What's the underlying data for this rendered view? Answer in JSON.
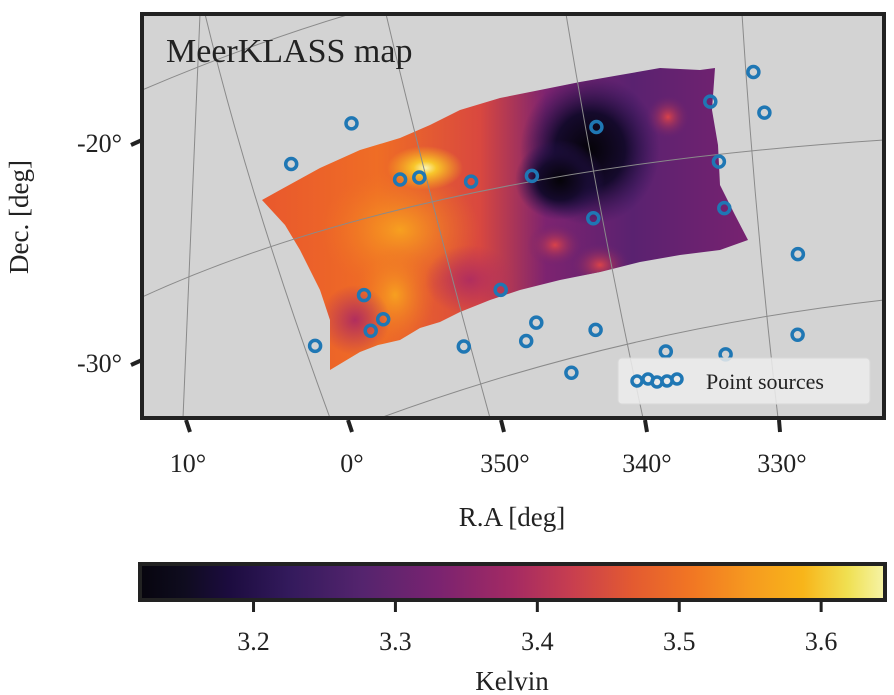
{
  "chart_data": {
    "type": "heatmap",
    "title": "MeerKLASS map",
    "xlabel": "R.A [deg]",
    "ylabel": "Dec. [deg]",
    "x_ticks": [
      {
        "value": 10,
        "label": "10°"
      },
      {
        "value": 0,
        "label": "0°"
      },
      {
        "value": 350,
        "label": "350°"
      },
      {
        "value": 340,
        "label": "340°"
      },
      {
        "value": 330,
        "label": "330°"
      }
    ],
    "y_ticks": [
      {
        "value": -20,
        "label": "-20°"
      },
      {
        "value": -30,
        "label": "-30°"
      }
    ],
    "grid": true,
    "colormap": "inferno",
    "colorbar": {
      "label": "Kelvin",
      "range": [
        3.12,
        3.645
      ],
      "ticks": [
        {
          "value": 3.2,
          "label": "3.2"
        },
        {
          "value": 3.3,
          "label": "3.3"
        },
        {
          "value": 3.4,
          "label": "3.4"
        },
        {
          "value": 3.5,
          "label": "3.5"
        },
        {
          "value": 3.6,
          "label": "3.6"
        }
      ],
      "orientation": "horizontal",
      "placement": "bottom"
    },
    "legend": {
      "placement": "lower-right",
      "entries": [
        {
          "label": "Point sources",
          "marker": "open-circle",
          "color": "#1f77b4"
        }
      ]
    },
    "map_features": [
      {
        "description": "hot spot",
        "ra": 356.5,
        "dec": -21.3,
        "value": 3.64
      },
      {
        "description": "cold spot",
        "ra": 343.5,
        "dec": -20.0,
        "value": 3.12
      },
      {
        "description": "warm compact source",
        "ra": 338.0,
        "dec": -18.6,
        "value": 3.38
      }
    ],
    "point_sources": [
      {
        "ra": 1.0,
        "dec": -19.2
      },
      {
        "ra": 4.5,
        "dec": -21.4
      },
      {
        "ra": 357.5,
        "dec": -21.5
      },
      {
        "ra": 356.3,
        "dec": -21.3
      },
      {
        "ra": 353.0,
        "dec": -21.2
      },
      {
        "ra": 349.2,
        "dec": -20.6
      },
      {
        "ra": 345.5,
        "dec": -18.0
      },
      {
        "ra": 345.0,
        "dec": -22.2
      },
      {
        "ra": 338.5,
        "dec": -16.2
      },
      {
        "ra": 336.0,
        "dec": -14.6
      },
      {
        "ra": 335.0,
        "dec": -16.4
      },
      {
        "ra": 337.5,
        "dec": -18.9
      },
      {
        "ra": 336.8,
        "dec": -21.0
      },
      {
        "ra": 331.8,
        "dec": -22.7
      },
      {
        "ra": 331.2,
        "dec": -26.4
      },
      {
        "ra": 358.9,
        "dec": -27.0
      },
      {
        "ra": 358.2,
        "dec": -28.6
      },
      {
        "ra": 357.5,
        "dec": -28.0
      },
      {
        "ra": 1.6,
        "dec": -29.6
      },
      {
        "ra": 352.2,
        "dec": -28.8
      },
      {
        "ra": 350.3,
        "dec": -26.0
      },
      {
        "ra": 348.3,
        "dec": -28.2
      },
      {
        "ra": 347.8,
        "dec": -27.3
      },
      {
        "ra": 345.2,
        "dec": -29.4
      },
      {
        "ra": 344.0,
        "dec": -27.3
      },
      {
        "ra": 339.4,
        "dec": -27.9
      },
      {
        "ra": 335.6,
        "dec": -27.7
      }
    ]
  }
}
